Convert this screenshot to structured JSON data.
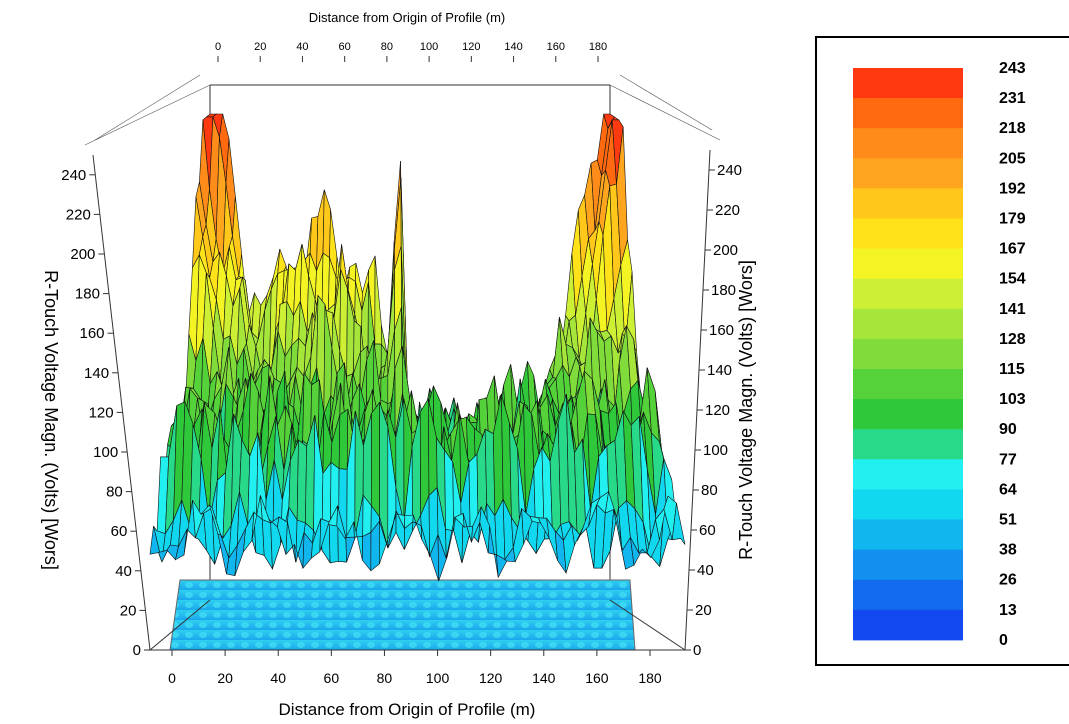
{
  "chart_data": {
    "type": "surface3d",
    "title": "",
    "xlabel_bottom": "Distance from Origin of Profile (m)",
    "xlabel_top": "Distance from Origin of Profile (m)",
    "zlabel_left": "[sʇloʌ] (sʇloΛ) .ubɐɯ ǝbɐʇloΛ ɥɔnoʇ-ɹ",
    "zlabel_left_display": "R-Touch Voltage Magn. (Volts) [Wors]",
    "zlabel_right": "R-Touch Voltage Magn. (Volts) [Wors]",
    "x_ticks": [
      "0",
      "20",
      "40",
      "60",
      "80",
      "100",
      "120",
      "140",
      "160",
      "180"
    ],
    "x_ticks_top": [
      "0",
      "20",
      "40",
      "60",
      "80",
      "100",
      "120",
      "140",
      "160",
      "180"
    ],
    "z_ticks": [
      "0",
      "20",
      "40",
      "60",
      "80",
      "100",
      "120",
      "140",
      "160",
      "180",
      "200",
      "220",
      "240"
    ],
    "xlim": [
      0,
      180
    ],
    "zlim": [
      0,
      243
    ],
    "profile_peaks": [
      {
        "x": 0,
        "z": 243
      },
      {
        "x": 85,
        "z": 200
      },
      {
        "x": 180,
        "z": 240
      }
    ],
    "legend": {
      "values": [
        "243",
        "231",
        "218",
        "205",
        "192",
        "179",
        "167",
        "154",
        "141",
        "128",
        "115",
        "103",
        "90",
        "77",
        "64",
        "51",
        "38",
        "26",
        "13",
        "0"
      ],
      "colors": [
        "#ff3a10",
        "#ff6a10",
        "#ff8c1a",
        "#ffa51e",
        "#ffc81a",
        "#ffe21a",
        "#f4f425",
        "#cdf035",
        "#a6e63a",
        "#80dc3a",
        "#55d23a",
        "#2ec83a",
        "#28d98a",
        "#22f0f0",
        "#12d8ef",
        "#12b6ef",
        "#128fef",
        "#126bef",
        "#1248ef"
      ]
    }
  }
}
